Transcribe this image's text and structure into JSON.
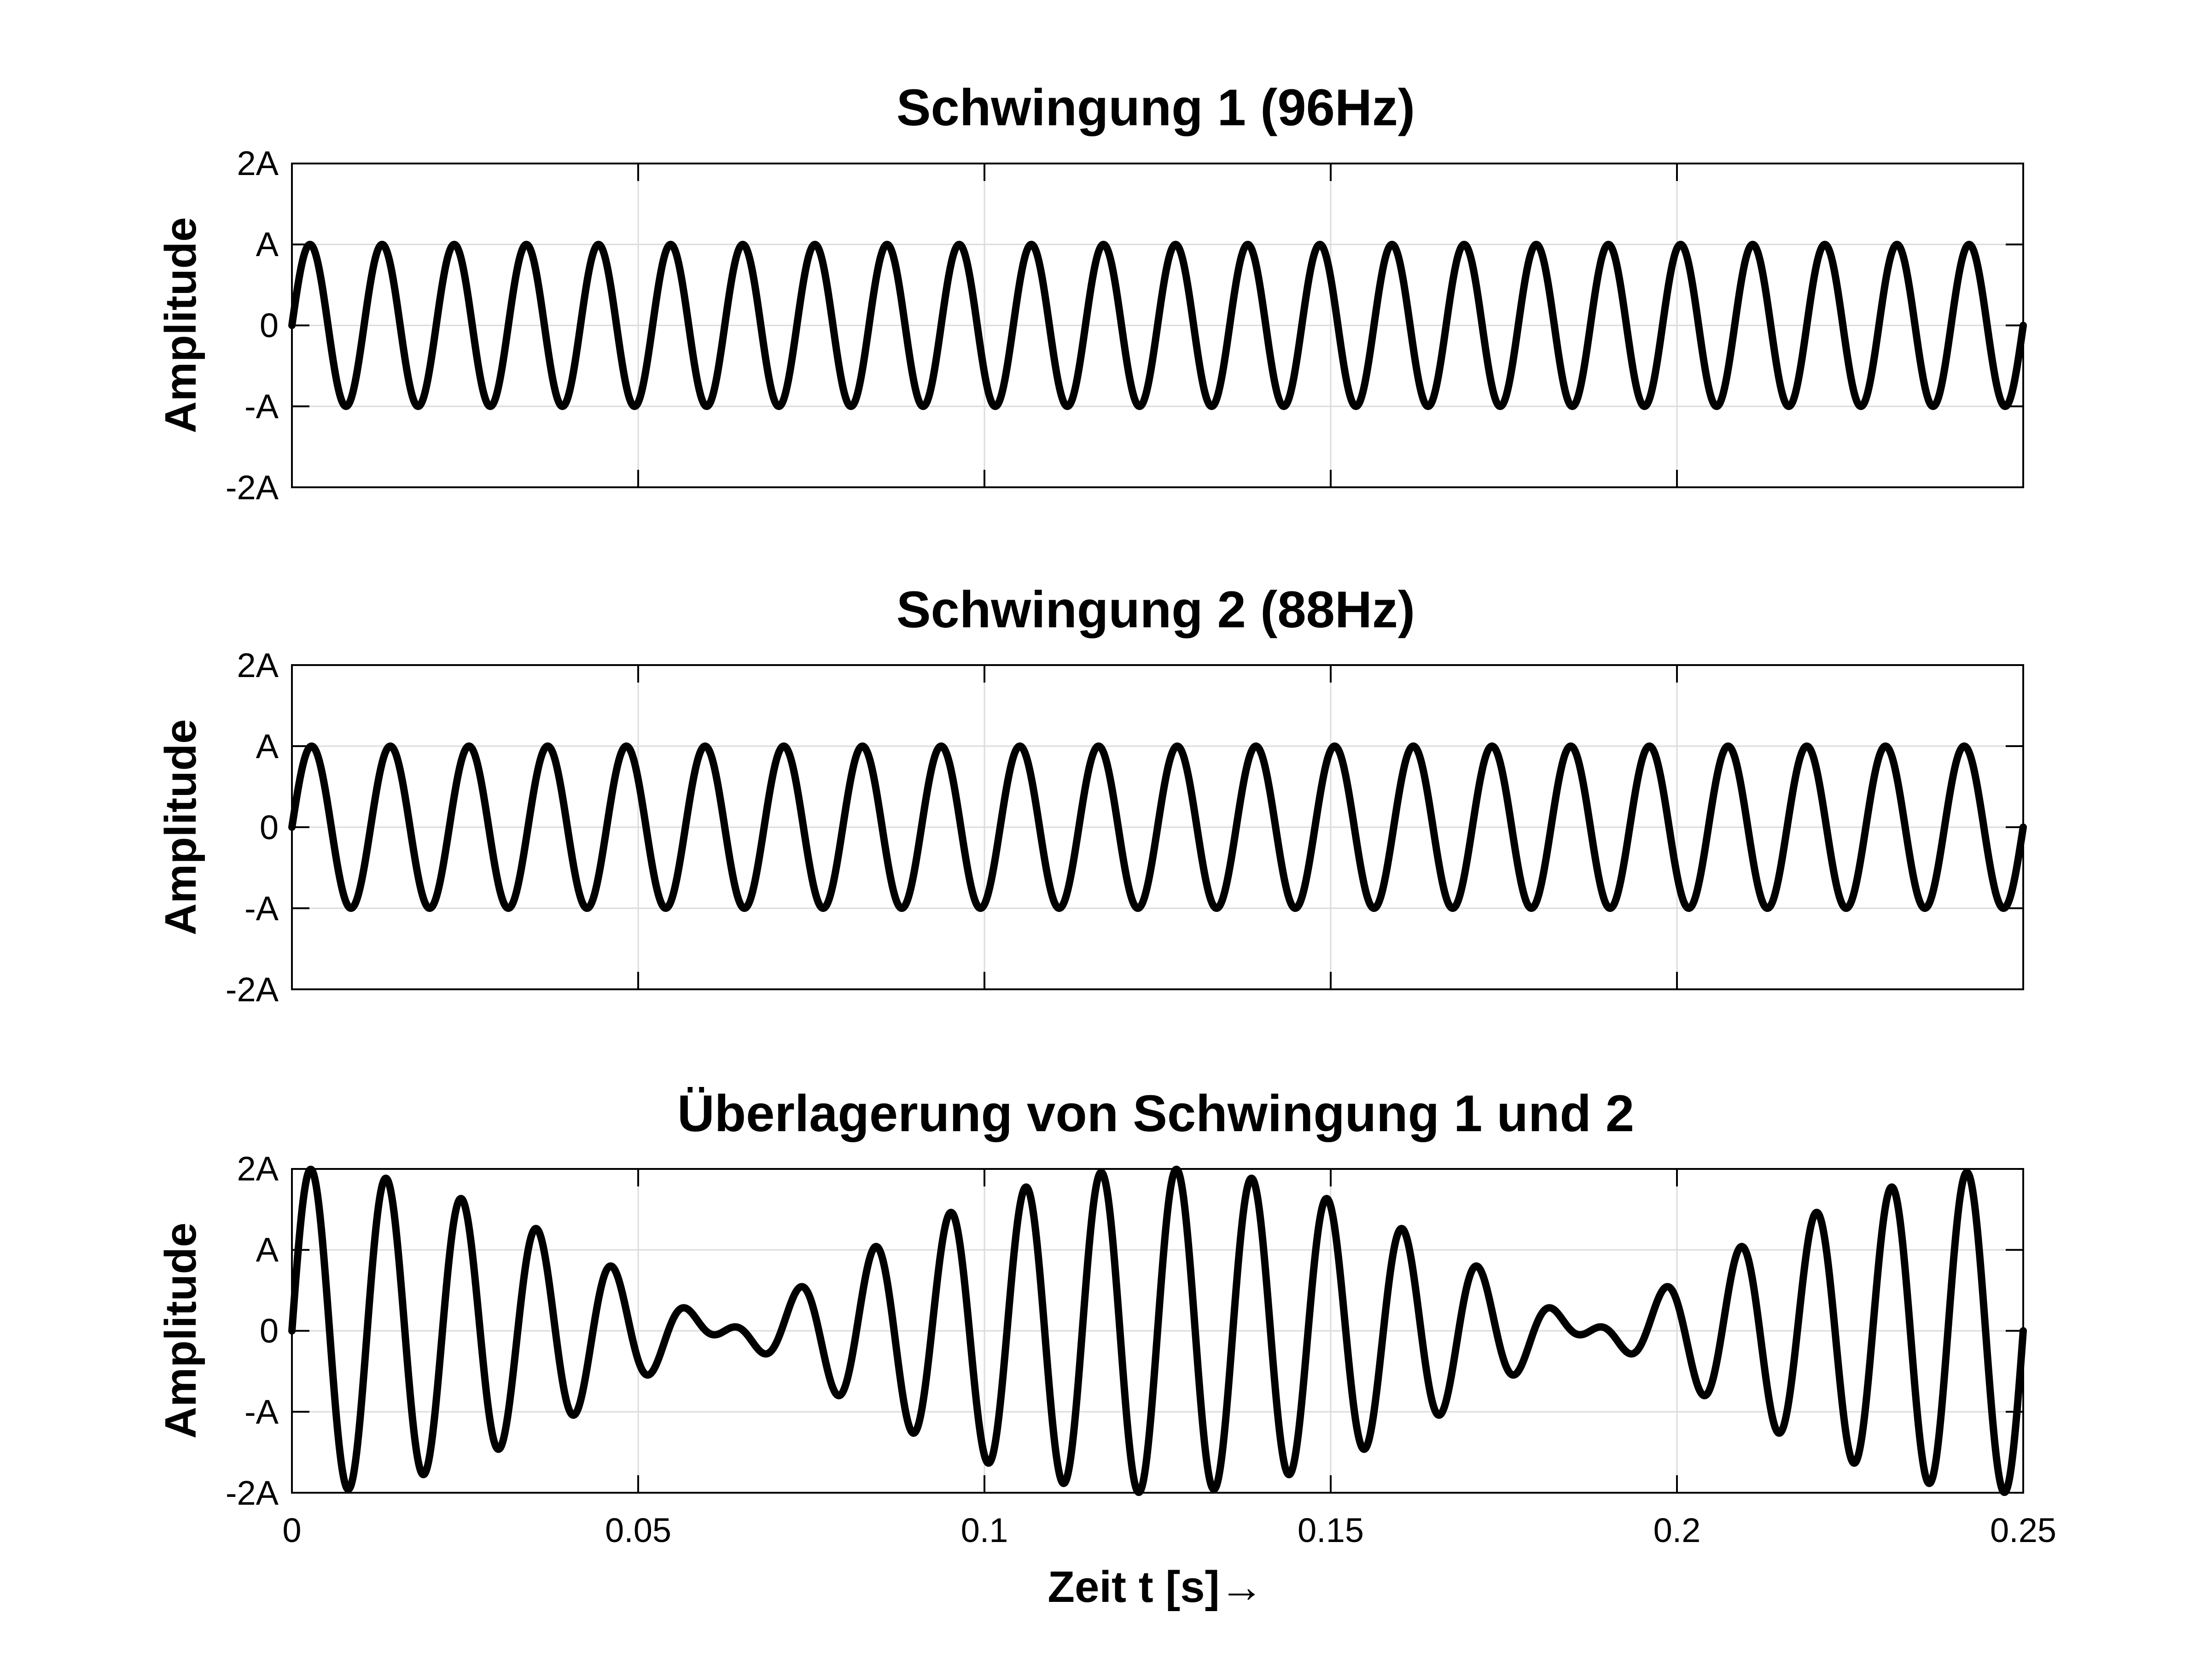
{
  "figure": {
    "xlabel": "Zeit t [s]→",
    "x_ticks": [
      "0",
      "0.05",
      "0.1",
      "0.15",
      "0.2",
      "0.25"
    ],
    "y_ticks": [
      "-2A",
      "-A",
      "0",
      "A",
      "2A"
    ]
  },
  "chart_data": [
    {
      "type": "line",
      "title": "Schwingung 1 (96Hz)",
      "xlabel": "",
      "ylabel": "Amplitude",
      "xlim": [
        0,
        0.25
      ],
      "ylim": [
        -2,
        2
      ],
      "x_ticks": [
        0,
        0.05,
        0.1,
        0.15,
        0.2,
        0.25
      ],
      "y_ticks": [
        -2,
        -1,
        0,
        1,
        2
      ],
      "y_tick_labels": [
        "-2A",
        "-A",
        "0",
        "A",
        "2A"
      ],
      "grid": true,
      "series": [
        {
          "function": "sin(2*pi*96*t)",
          "frequency_hz": 96,
          "amplitude": 1,
          "color": "#000000"
        }
      ]
    },
    {
      "type": "line",
      "title": "Schwingung 2 (88Hz)",
      "xlabel": "",
      "ylabel": "Amplitude",
      "xlim": [
        0,
        0.25
      ],
      "ylim": [
        -2,
        2
      ],
      "x_ticks": [
        0,
        0.05,
        0.1,
        0.15,
        0.2,
        0.25
      ],
      "y_ticks": [
        -2,
        -1,
        0,
        1,
        2
      ],
      "y_tick_labels": [
        "-2A",
        "-A",
        "0",
        "A",
        "2A"
      ],
      "grid": true,
      "series": [
        {
          "function": "sin(2*pi*88*t)",
          "frequency_hz": 88,
          "amplitude": 1,
          "color": "#000000"
        }
      ]
    },
    {
      "type": "line",
      "title": "Überlagerung von Schwingung 1 und 2",
      "xlabel": "Zeit t [s]→",
      "ylabel": "Amplitude",
      "xlim": [
        0,
        0.25
      ],
      "ylim": [
        -2,
        2
      ],
      "x_ticks": [
        0,
        0.05,
        0.1,
        0.15,
        0.2,
        0.25
      ],
      "x_tick_labels": [
        "0",
        "0.05",
        "0.1",
        "0.15",
        "0.2",
        "0.25"
      ],
      "y_ticks": [
        -2,
        -1,
        0,
        1,
        2
      ],
      "y_tick_labels": [
        "-2A",
        "-A",
        "0",
        "A",
        "2A"
      ],
      "grid": true,
      "series": [
        {
          "function": "sin(2*pi*96*t) + sin(2*pi*88*t)",
          "components_hz": [
            96,
            88
          ],
          "amplitude": 1,
          "color": "#000000"
        }
      ]
    }
  ]
}
